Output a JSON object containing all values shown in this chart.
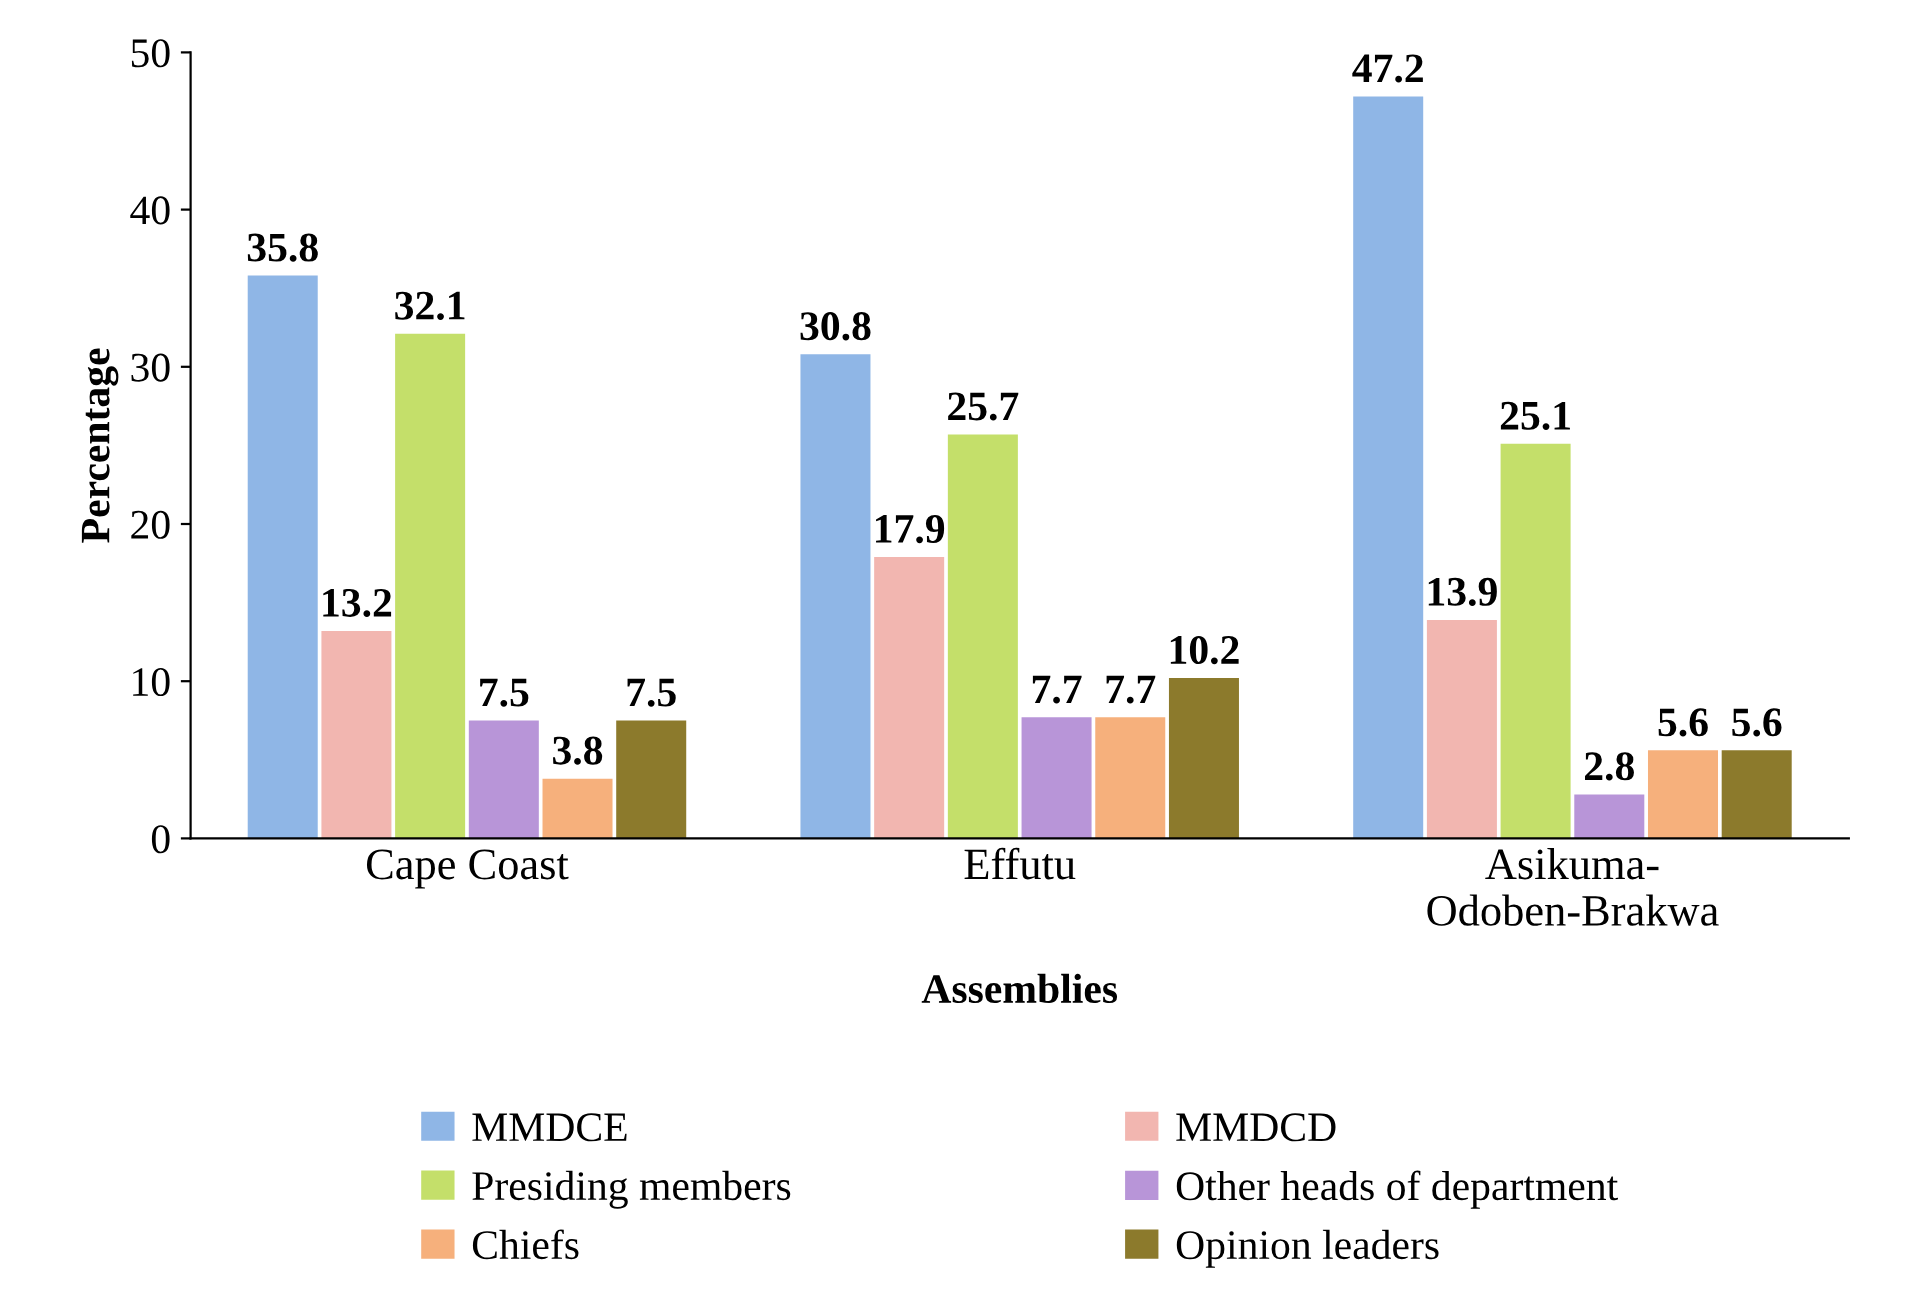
{
  "chart_data": {
    "type": "bar",
    "xlabel": "Assemblies",
    "ylabel": "Percentage",
    "categories": [
      "Cape Coast",
      "Effutu",
      "Asikuma-\nOdoben-Brakwa"
    ],
    "series": [
      {
        "name": "MMDCE",
        "color": "#8fb6e6",
        "values": [
          35.8,
          30.8,
          47.2
        ]
      },
      {
        "name": "MMDCD",
        "color": "#f2b6b0",
        "values": [
          13.2,
          17.9,
          13.9
        ]
      },
      {
        "name": "Presiding members",
        "color": "#c4df6a",
        "values": [
          32.1,
          25.7,
          25.1
        ]
      },
      {
        "name": "Other heads of department",
        "color": "#b895d8",
        "values": [
          7.5,
          7.7,
          2.8
        ]
      },
      {
        "name": "Chiefs",
        "color": "#f6b07c",
        "values": [
          3.8,
          7.7,
          5.6
        ]
      },
      {
        "name": "Opinion leaders",
        "color": "#8c7a2c",
        "values": [
          7.5,
          10.2,
          5.6
        ]
      }
    ],
    "ylim": [
      0,
      50
    ],
    "yticks": [
      0,
      10,
      20,
      30,
      40,
      50
    ],
    "grid": false,
    "legend": "bottom",
    "data_labels": true
  }
}
